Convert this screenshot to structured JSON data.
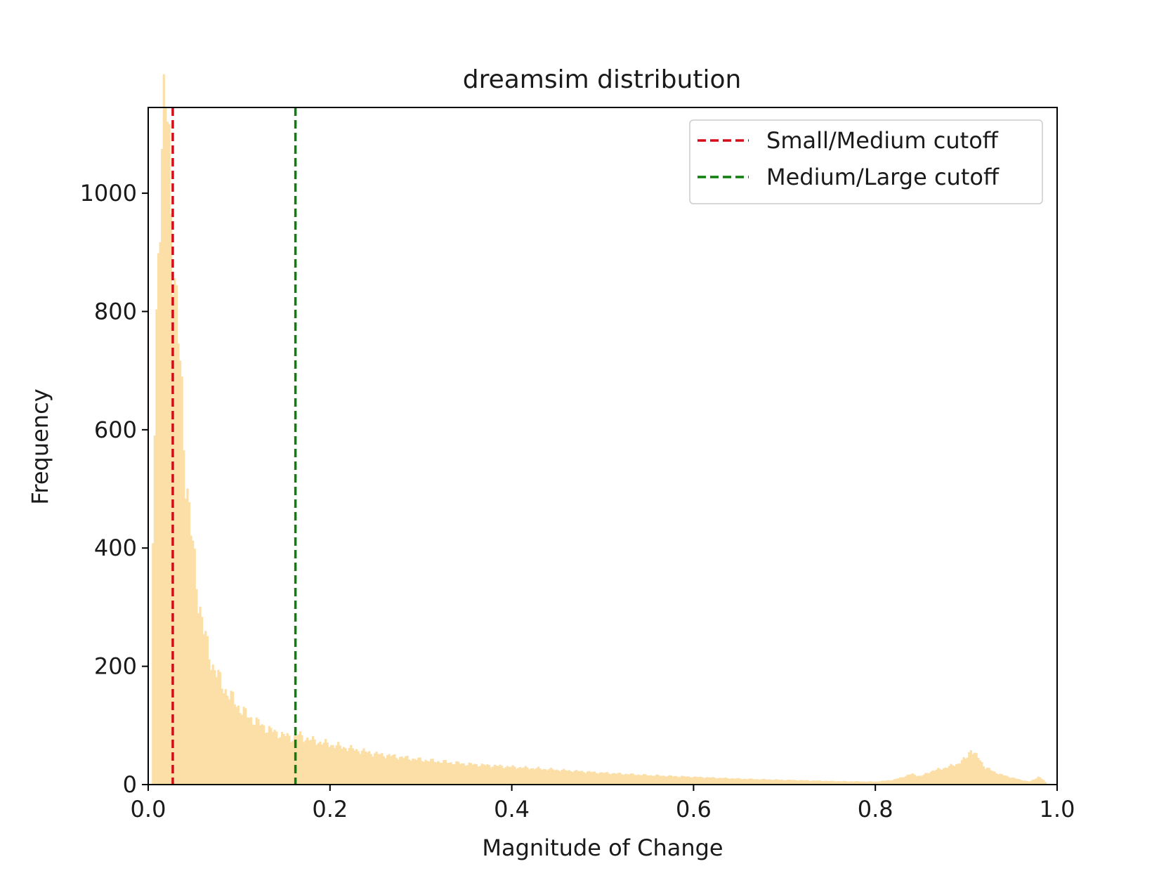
{
  "chart_data": {
    "type": "bar",
    "title": "dreamsim distribution",
    "xlabel": "Magnitude of Change",
    "ylabel": "Frequency",
    "xlim": [
      0.0,
      1.0
    ],
    "ylim": [
      0,
      1145
    ],
    "xticks": [
      "0.0",
      "0.2",
      "0.4",
      "0.6",
      "0.8",
      "1.0"
    ],
    "xtick_values": [
      0.0,
      0.2,
      0.4,
      0.6,
      0.8,
      1.0
    ],
    "yticks": [
      "0",
      "200",
      "400",
      "600",
      "800",
      "1000"
    ],
    "ytick_values": [
      0,
      200,
      400,
      600,
      800,
      1000
    ],
    "histogram": {
      "color": "#FCDFA6",
      "bin_width": 0.002,
      "x": [
        0.0,
        0.004,
        0.008,
        0.012,
        0.016,
        0.02,
        0.025,
        0.03,
        0.035,
        0.04,
        0.045,
        0.05,
        0.055,
        0.06,
        0.065,
        0.07,
        0.075,
        0.08,
        0.09,
        0.1,
        0.11,
        0.12,
        0.13,
        0.14,
        0.15,
        0.16,
        0.165,
        0.17,
        0.18,
        0.2,
        0.25,
        0.3,
        0.35,
        0.4,
        0.45,
        0.5,
        0.55,
        0.6,
        0.65,
        0.7,
        0.75,
        0.8,
        0.82,
        0.84,
        0.85,
        0.86,
        0.87,
        0.88,
        0.89,
        0.9,
        0.905,
        0.91,
        0.915,
        0.92,
        0.93,
        0.94,
        0.95,
        0.96,
        0.97,
        0.98,
        0.99
      ],
      "y": [
        40,
        300,
        700,
        1000,
        1100,
        1145,
        1000,
        820,
        700,
        560,
        460,
        380,
        320,
        270,
        230,
        205,
        190,
        170,
        150,
        130,
        115,
        105,
        95,
        88,
        83,
        78,
        85,
        80,
        75,
        68,
        52,
        42,
        35,
        30,
        25,
        20,
        16,
        13,
        10,
        8,
        6,
        5,
        8,
        18,
        14,
        22,
        26,
        30,
        35,
        45,
        60,
        50,
        42,
        30,
        22,
        16,
        12,
        8,
        5,
        14,
        0
      ]
    },
    "vlines": [
      {
        "name": "Small/Medium cutoff",
        "x": 0.027,
        "color": "#d60a18"
      },
      {
        "name": "Medium/Large cutoff",
        "x": 0.162,
        "color": "#0e7f0e"
      }
    ],
    "legend_placement": "top-right",
    "grid": false
  }
}
